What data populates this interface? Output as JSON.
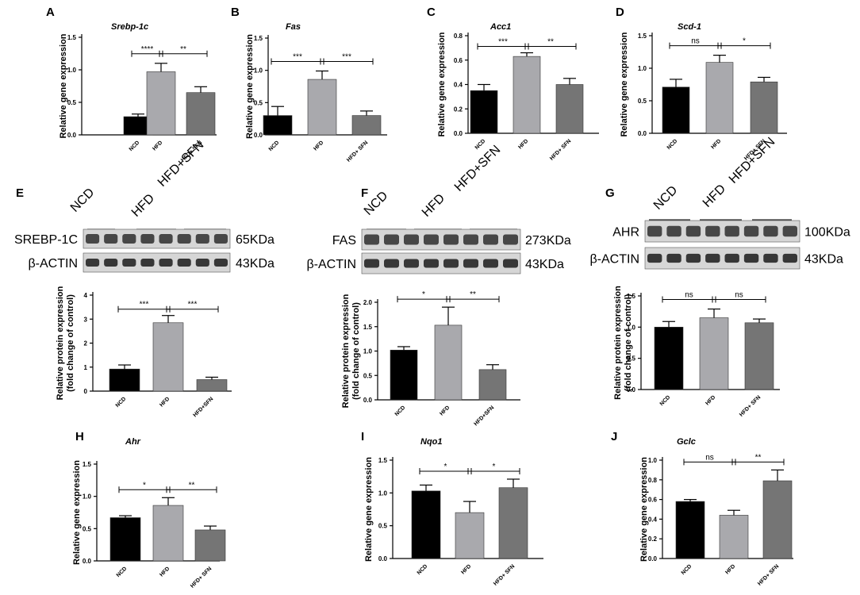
{
  "colors": {
    "ncd": "#000000",
    "hfd": "#a9a9ad",
    "hfd_sfn": "#757575",
    "blot_bg": "#d6d6d6",
    "band": "#2e2e2e"
  },
  "chart_data": [
    {
      "panel": "A",
      "type": "bar",
      "title": "Srebp-1c",
      "ylabel": "Relative gene expression",
      "categories": [
        "NCD",
        "HFD",
        "HFD+ SFN"
      ],
      "values": [
        0.28,
        0.97,
        0.65
      ],
      "errors": [
        0.04,
        0.13,
        0.09
      ],
      "ylim": [
        0,
        1.5
      ],
      "yticks": [
        "0.0",
        "0.5",
        "1.0",
        "1.5"
      ],
      "brackets": [
        {
          "from": 0,
          "to": 1,
          "label": "****"
        },
        {
          "from": 1,
          "to": 2,
          "label": "**"
        }
      ]
    },
    {
      "panel": "B",
      "type": "bar",
      "title": "Fas",
      "ylabel": "Relative gene expression",
      "categories": [
        "NCD",
        "HFD",
        "HFD+ SFN"
      ],
      "values": [
        0.3,
        0.86,
        0.3
      ],
      "errors": [
        0.14,
        0.13,
        0.07
      ],
      "ylim": [
        0,
        1.5
      ],
      "yticks": [
        "0.0",
        "0.5",
        "1.0",
        "1.5"
      ],
      "brackets": [
        {
          "from": 0,
          "to": 1,
          "label": "***"
        },
        {
          "from": 1,
          "to": 2,
          "label": "***"
        }
      ]
    },
    {
      "panel": "C",
      "type": "bar",
      "title": "Acc1",
      "ylabel": "Relative gene expression",
      "categories": [
        "NCD",
        "HFD",
        "HFD+ SFN"
      ],
      "values": [
        0.35,
        0.63,
        0.4
      ],
      "errors": [
        0.05,
        0.03,
        0.05
      ],
      "ylim": [
        0,
        0.8
      ],
      "yticks": [
        "0.0",
        "0.2",
        "0.4",
        "0.6",
        "0.8"
      ],
      "brackets": [
        {
          "from": 0,
          "to": 1,
          "label": "***"
        },
        {
          "from": 1,
          "to": 2,
          "label": "**"
        }
      ]
    },
    {
      "panel": "D",
      "type": "bar",
      "title": "Scd-1",
      "ylabel": "Relative gene expression",
      "categories": [
        "NCD",
        "HFD",
        "HFD+ SFN"
      ],
      "values": [
        0.71,
        1.09,
        0.79
      ],
      "errors": [
        0.12,
        0.11,
        0.07
      ],
      "ylim": [
        0,
        1.5
      ],
      "yticks": [
        "0.0",
        "0.5",
        "1.0",
        "1.5"
      ],
      "brackets": [
        {
          "from": 0,
          "to": 1,
          "label": "ns"
        },
        {
          "from": 1,
          "to": 2,
          "label": "*"
        }
      ]
    },
    {
      "panel": "E",
      "type": "bar",
      "title": "",
      "ylabel": "Relative protein expression (fold change of control)",
      "ylabel_lines": [
        "Relative protein expression",
        "(fold change of control)"
      ],
      "categories": [
        "NCD",
        "HFD",
        "HFD+SFN"
      ],
      "values": [
        0.92,
        2.85,
        0.48
      ],
      "errors": [
        0.17,
        0.3,
        0.1
      ],
      "ylim": [
        0,
        4
      ],
      "yticks": [
        "0",
        "1",
        "2",
        "3",
        "4"
      ],
      "brackets": [
        {
          "from": 0,
          "to": 1,
          "label": "***"
        },
        {
          "from": 1,
          "to": 2,
          "label": "***"
        }
      ]
    },
    {
      "panel": "F",
      "type": "bar",
      "title": "",
      "ylabel": "Relative protein expression (fold change of control)",
      "ylabel_lines": [
        "Relative protein expression",
        "(fold change of control)"
      ],
      "categories": [
        "NCD",
        "HFD",
        "HFD+SFN"
      ],
      "values": [
        1.02,
        1.53,
        0.62
      ],
      "errors": [
        0.07,
        0.37,
        0.1
      ],
      "ylim": [
        0,
        2.0
      ],
      "yticks": [
        "0.0",
        "0.5",
        "1.0",
        "1.5",
        "2.0"
      ],
      "brackets": [
        {
          "from": 0,
          "to": 1,
          "label": "*"
        },
        {
          "from": 1,
          "to": 2,
          "label": "**"
        }
      ]
    },
    {
      "panel": "G",
      "type": "bar",
      "title": "",
      "ylabel": "Relative protein expression (fold change of control)",
      "ylabel_lines": [
        "Relative protein expression",
        "(fold change of control)"
      ],
      "categories": [
        "NCD",
        "HFD",
        "HFD+ SFN"
      ],
      "values": [
        1.0,
        1.15,
        1.07
      ],
      "errors": [
        0.09,
        0.14,
        0.06
      ],
      "ylim": [
        0,
        1.5
      ],
      "yticks": [
        "0.0",
        "0.5",
        "1.0",
        "1.5"
      ],
      "brackets": [
        {
          "from": 0,
          "to": 1,
          "label": "ns"
        },
        {
          "from": 1,
          "to": 2,
          "label": "ns"
        }
      ]
    },
    {
      "panel": "H",
      "type": "bar",
      "title": "Ahr",
      "ylabel": "Relative gene expression",
      "categories": [
        "NCD",
        "HFD",
        "HFD+ SFN"
      ],
      "values": [
        0.67,
        0.86,
        0.48
      ],
      "errors": [
        0.03,
        0.12,
        0.06
      ],
      "ylim": [
        0,
        1.5
      ],
      "yticks": [
        "0.0",
        "0.5",
        "1.0",
        "1.5"
      ],
      "brackets": [
        {
          "from": 0,
          "to": 1,
          "label": "*"
        },
        {
          "from": 1,
          "to": 2,
          "label": "**"
        }
      ]
    },
    {
      "panel": "I",
      "type": "bar",
      "title": "Nqo1",
      "ylabel": "Relative gene expression",
      "categories": [
        "NCD",
        "HFD",
        "HFD+ SFN"
      ],
      "values": [
        1.03,
        0.7,
        1.08
      ],
      "errors": [
        0.09,
        0.17,
        0.13
      ],
      "ylim": [
        0,
        1.5
      ],
      "yticks": [
        "0.0",
        "0.5",
        "1.0",
        "1.5"
      ],
      "brackets": [
        {
          "from": 0,
          "to": 1,
          "label": "*"
        },
        {
          "from": 1,
          "to": 2,
          "label": "*"
        }
      ]
    },
    {
      "panel": "J",
      "type": "bar",
      "title": "Gclc",
      "ylabel": "Relative gene expression",
      "categories": [
        "NCD",
        "HFD",
        "HFD+ SFN"
      ],
      "values": [
        0.58,
        0.44,
        0.79
      ],
      "errors": [
        0.02,
        0.05,
        0.11
      ],
      "ylim": [
        0,
        1.0
      ],
      "yticks": [
        "0.0",
        "0.2",
        "0.4",
        "0.6",
        "0.8",
        "1.0"
      ],
      "brackets": [
        {
          "from": 0,
          "to": 1,
          "label": "ns"
        },
        {
          "from": 1,
          "to": 2,
          "label": "**"
        }
      ]
    }
  ],
  "blots": [
    {
      "panel": "E",
      "groups": [
        "NCD",
        "HFD",
        "HFD+SFN"
      ],
      "rows": [
        {
          "protein": "SREBP-1C",
          "size": "65KDa"
        },
        {
          "protein": "β-ACTIN",
          "size": "43KDa"
        }
      ]
    },
    {
      "panel": "F",
      "groups": [
        "NCD",
        "HFD",
        "HFD+SFN"
      ],
      "rows": [
        {
          "protein": "FAS",
          "size": "273KDa"
        },
        {
          "protein": "β-ACTIN",
          "size": "43KDa"
        }
      ]
    },
    {
      "panel": "G",
      "groups": [
        "NCD",
        "HFD",
        "HFD+SFN"
      ],
      "rows": [
        {
          "protein": "AHR",
          "size": "100KDa"
        },
        {
          "protein": "β-ACTIN",
          "size": "43KDa"
        }
      ]
    }
  ]
}
